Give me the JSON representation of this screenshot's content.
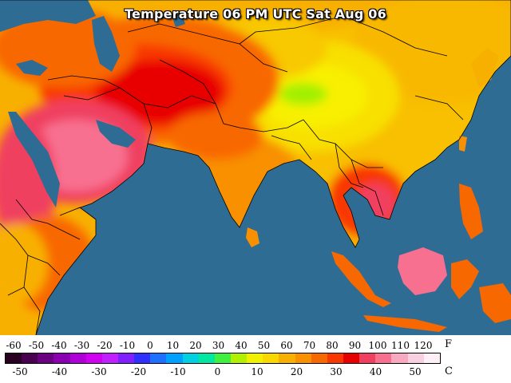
{
  "title": "Temperature 06 PM UTC Sat Aug 06",
  "legend": {
    "f_unit": "F",
    "c_unit": "C",
    "f_ticks": [
      "-60",
      "-50",
      "-40",
      "-30",
      "-20",
      "-10",
      "0",
      "10",
      "20",
      "30",
      "40",
      "50",
      "60",
      "70",
      "80",
      "90",
      "100",
      "110",
      "120"
    ],
    "c_ticks": [
      "-50",
      "-40",
      "-30",
      "-20",
      "-10",
      "0",
      "10",
      "20",
      "30",
      "40",
      "50"
    ],
    "colors": [
      "#2a0020",
      "#4a0050",
      "#6a0080",
      "#8a00b0",
      "#b000d8",
      "#d000f0",
      "#c020ff",
      "#8020ff",
      "#3030ff",
      "#2070ff",
      "#00a0ff",
      "#00d0e0",
      "#00e8a0",
      "#40f040",
      "#b0f000",
      "#f0f000",
      "#f8d800",
      "#f8b000",
      "#f89000",
      "#f86800",
      "#f83800",
      "#e80000",
      "#f04060",
      "#f87090",
      "#f8a8c0",
      "#f8d0e0",
      "#fff0f8"
    ]
  }
}
